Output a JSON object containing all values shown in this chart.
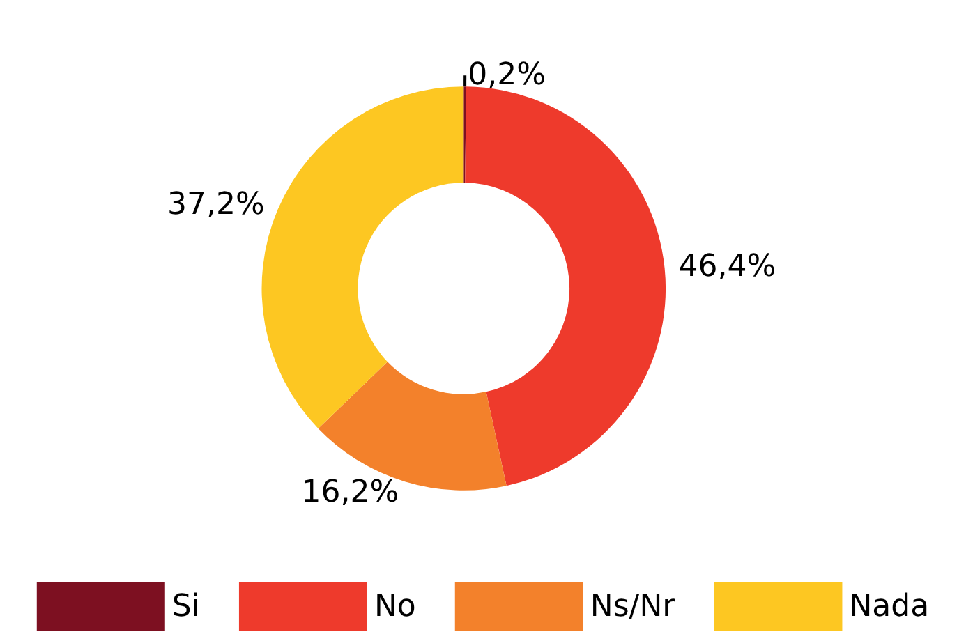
{
  "chart_data": {
    "type": "donut",
    "categories": [
      "Si",
      "No",
      "Ns/Nr",
      "Nada"
    ],
    "values": [
      0.2,
      46.4,
      16.2,
      37.2
    ],
    "colors": [
      "#7d1021",
      "#ee3a2c",
      "#f3812b",
      "#fdc722"
    ],
    "value_labels": [
      "0,2%",
      "46,4%",
      "16,2%",
      "37,2%"
    ],
    "legend": "bottom"
  }
}
